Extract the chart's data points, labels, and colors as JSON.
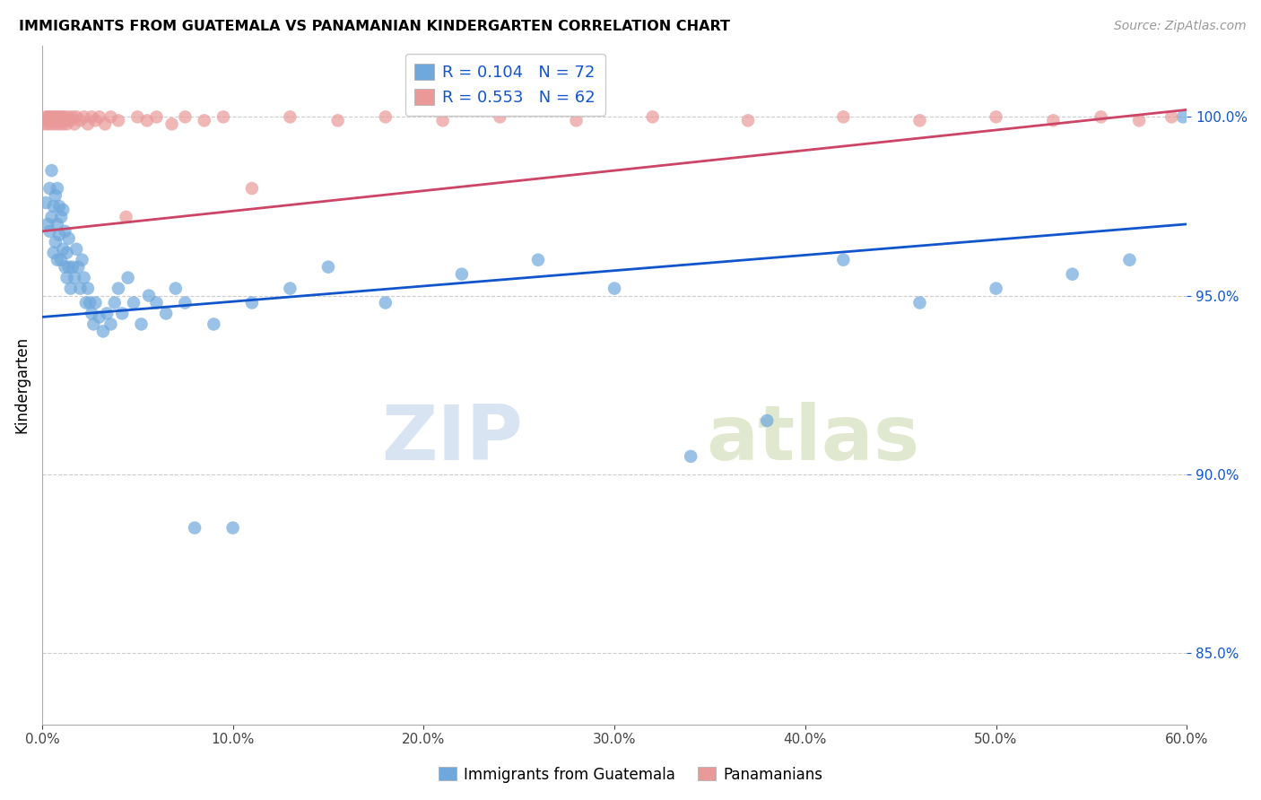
{
  "title": "IMMIGRANTS FROM GUATEMALA VS PANAMANIAN KINDERGARTEN CORRELATION CHART",
  "source": "Source: ZipAtlas.com",
  "xlabel_blue": "Immigrants from Guatemala",
  "xlabel_pink": "Panamanians",
  "ylabel": "Kindergarten",
  "xlim": [
    0.0,
    0.6
  ],
  "ylim": [
    0.83,
    1.02
  ],
  "yticks": [
    0.85,
    0.9,
    0.95,
    1.0
  ],
  "xticks": [
    0.0,
    0.1,
    0.2,
    0.3,
    0.4,
    0.5,
    0.6
  ],
  "blue_R": 0.104,
  "blue_N": 72,
  "pink_R": 0.553,
  "pink_N": 62,
  "blue_color": "#6fa8dc",
  "pink_color": "#ea9999",
  "blue_line_color": "#1155cc",
  "pink_line_color": "#cc4466",
  "legend_text_color": "#1155cc",
  "watermark_zip": "ZIP",
  "watermark_atlas": "atlas",
  "blue_trend_x0": 0.0,
  "blue_trend_y0": 0.944,
  "blue_trend_x1": 0.6,
  "blue_trend_y1": 0.97,
  "pink_trend_x0": 0.0,
  "pink_trend_y0": 0.968,
  "pink_trend_x1": 0.6,
  "pink_trend_y1": 1.002,
  "blue_scatter_x": [
    0.002,
    0.003,
    0.004,
    0.004,
    0.005,
    0.005,
    0.006,
    0.006,
    0.007,
    0.007,
    0.008,
    0.008,
    0.008,
    0.009,
    0.009,
    0.01,
    0.01,
    0.011,
    0.011,
    0.012,
    0.012,
    0.013,
    0.013,
    0.014,
    0.014,
    0.015,
    0.016,
    0.017,
    0.018,
    0.019,
    0.02,
    0.021,
    0.022,
    0.023,
    0.024,
    0.025,
    0.026,
    0.027,
    0.028,
    0.03,
    0.032,
    0.034,
    0.036,
    0.038,
    0.04,
    0.042,
    0.045,
    0.048,
    0.052,
    0.056,
    0.06,
    0.065,
    0.07,
    0.075,
    0.08,
    0.09,
    0.1,
    0.11,
    0.13,
    0.15,
    0.18,
    0.22,
    0.26,
    0.3,
    0.34,
    0.38,
    0.42,
    0.46,
    0.5,
    0.54,
    0.57,
    0.598
  ],
  "blue_scatter_y": [
    0.976,
    0.97,
    0.98,
    0.968,
    0.985,
    0.972,
    0.975,
    0.962,
    0.978,
    0.965,
    0.98,
    0.97,
    0.96,
    0.975,
    0.967,
    0.972,
    0.96,
    0.974,
    0.963,
    0.968,
    0.958,
    0.962,
    0.955,
    0.966,
    0.958,
    0.952,
    0.958,
    0.955,
    0.963,
    0.958,
    0.952,
    0.96,
    0.955,
    0.948,
    0.952,
    0.948,
    0.945,
    0.942,
    0.948,
    0.944,
    0.94,
    0.945,
    0.942,
    0.948,
    0.952,
    0.945,
    0.955,
    0.948,
    0.942,
    0.95,
    0.948,
    0.945,
    0.952,
    0.948,
    0.885,
    0.942,
    0.885,
    0.948,
    0.952,
    0.958,
    0.948,
    0.956,
    0.96,
    0.952,
    0.905,
    0.915,
    0.96,
    0.948,
    0.952,
    0.956,
    0.96,
    1.0
  ],
  "pink_scatter_x": [
    0.001,
    0.002,
    0.002,
    0.003,
    0.003,
    0.004,
    0.004,
    0.005,
    0.005,
    0.006,
    0.006,
    0.007,
    0.007,
    0.008,
    0.008,
    0.009,
    0.009,
    0.01,
    0.01,
    0.011,
    0.011,
    0.012,
    0.012,
    0.013,
    0.014,
    0.015,
    0.016,
    0.017,
    0.018,
    0.02,
    0.022,
    0.024,
    0.026,
    0.028,
    0.03,
    0.033,
    0.036,
    0.04,
    0.044,
    0.05,
    0.055,
    0.06,
    0.068,
    0.075,
    0.085,
    0.095,
    0.11,
    0.13,
    0.155,
    0.18,
    0.21,
    0.24,
    0.28,
    0.32,
    0.37,
    0.42,
    0.46,
    0.5,
    0.53,
    0.555,
    0.575,
    0.592
  ],
  "pink_scatter_y": [
    0.998,
    0.999,
    1.0,
    0.998,
    1.0,
    0.999,
    1.0,
    0.998,
    1.0,
    0.999,
    1.0,
    0.998,
    1.0,
    0.999,
    1.0,
    0.998,
    1.0,
    0.999,
    1.0,
    0.998,
    1.0,
    0.999,
    1.0,
    0.998,
    1.0,
    0.999,
    1.0,
    0.998,
    1.0,
    0.999,
    1.0,
    0.998,
    1.0,
    0.999,
    1.0,
    0.998,
    1.0,
    0.999,
    0.972,
    1.0,
    0.999,
    1.0,
    0.998,
    1.0,
    0.999,
    1.0,
    0.98,
    1.0,
    0.999,
    1.0,
    0.999,
    1.0,
    0.999,
    1.0,
    0.999,
    1.0,
    0.999,
    1.0,
    0.999,
    1.0,
    0.999,
    1.0
  ]
}
